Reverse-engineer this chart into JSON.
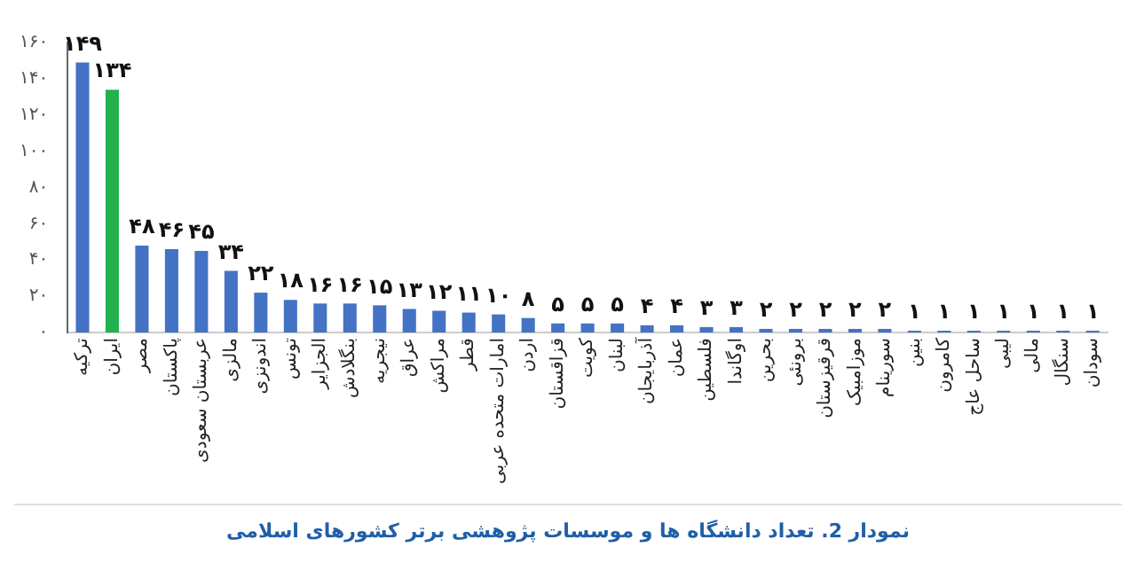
{
  "chart_data": {
    "type": "bar",
    "title": "نمودار 2. تعداد دانشگاه ها و موسسات پژوهشی برتر کشورهای اسلامی",
    "categories": [
      "ترکیه",
      "ایران",
      "مصر",
      "پاکستان",
      "عربستان سعودی",
      "مالزی",
      "اندونزی",
      "تونس",
      "الجزایر",
      "بنگلادش",
      "نیجریه",
      "عراق",
      "مراکش",
      "قطر",
      "امارات متحده عربی",
      "اردن",
      "قزاقستان",
      "کویت",
      "لبنان",
      "آذربایجان",
      "عمان",
      "فلسطین",
      "اوگاندا",
      "بحرین",
      "برونئی",
      "قرقیزستان",
      "موزامبیک",
      "سورینام",
      "بنین",
      "کامرون",
      "ساحل عاج",
      "لیبی",
      "مالی",
      "سنگال",
      "سودان"
    ],
    "values": [
      149,
      134,
      48,
      46,
      45,
      34,
      22,
      18,
      16,
      16,
      15,
      13,
      12,
      11,
      10,
      8,
      5,
      5,
      5,
      4,
      4,
      3,
      3,
      2,
      2,
      2,
      2,
      2,
      1,
      1,
      1,
      1,
      1,
      1,
      1
    ],
    "value_labels": [
      "۱۴۹",
      "۱۳۴",
      "۴۸",
      "۴۶",
      "۴۵",
      "۳۴",
      "۲۲",
      "۱۸",
      "۱۶",
      "۱۶",
      "۱۵",
      "۱۳",
      "۱۲",
      "۱۱",
      "۱۰",
      "۸",
      "۵",
      "۵",
      "۵",
      "۴",
      "۴",
      "۳",
      "۳",
      "۲",
      "۲",
      "۲",
      "۲",
      "۲",
      "۱",
      "۱",
      "۱",
      "۱",
      "۱",
      "۱",
      "۱"
    ],
    "colors": [
      "#4472c4",
      "#22b14c",
      "#4472c4",
      "#4472c4",
      "#4472c4",
      "#4472c4",
      "#4472c4",
      "#4472c4",
      "#4472c4",
      "#4472c4",
      "#4472c4",
      "#4472c4",
      "#4472c4",
      "#4472c4",
      "#4472c4",
      "#4472c4",
      "#4472c4",
      "#4472c4",
      "#4472c4",
      "#4472c4",
      "#4472c4",
      "#4472c4",
      "#4472c4",
      "#4472c4",
      "#4472c4",
      "#4472c4",
      "#4472c4",
      "#4472c4",
      "#4472c4",
      "#4472c4",
      "#4472c4",
      "#4472c4",
      "#4472c4",
      "#4472c4",
      "#4472c4"
    ],
    "ylim": [
      0,
      160
    ],
    "yticks": [
      {
        "value": 0,
        "label": "۰"
      },
      {
        "value": 20,
        "label": "۲۰"
      },
      {
        "value": 40,
        "label": "۴۰"
      },
      {
        "value": 60,
        "label": "۶۰"
      },
      {
        "value": 80,
        "label": "۸۰"
      },
      {
        "value": 100,
        "label": "۱۰۰"
      },
      {
        "value": 120,
        "label": "۱۲۰"
      },
      {
        "value": 140,
        "label": "۱۴۰"
      },
      {
        "value": 160,
        "label": "۱۶۰"
      }
    ],
    "grid": false,
    "legend": false
  }
}
